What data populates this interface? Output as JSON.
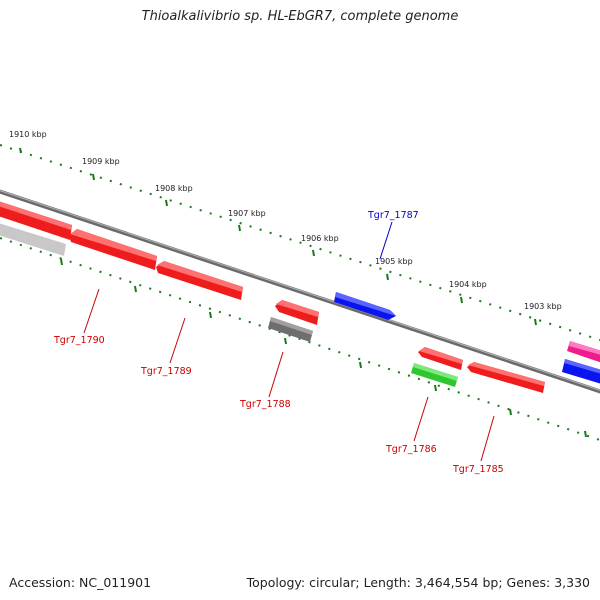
{
  "title": "Thioalkalivibrio sp. HL-EbGR7, complete genome",
  "footer": {
    "accession": "Accession: NC_011901",
    "summary": "Topology: circular; Length: 3,464,554 bp; Genes: 3,330"
  },
  "colors": {
    "backbone": "#808080",
    "tick_dots": "#1a7a1a",
    "red_gene": "#ee1c1c",
    "gray_gene": "#6e6e6e",
    "light_gray_gene": "#c8c8c8",
    "blue_gene": "#0a14ee",
    "green_gene": "#2fc72f",
    "magenta_gene": "#ee1c8c",
    "label_red": "#cc0000",
    "label_blue": "#0000cc"
  },
  "scale_labels": [
    "1910 kbp",
    "1909 kbp",
    "1908 kbp",
    "1907 kbp",
    "1906 kbp",
    "1905 kbp",
    "1904 kbp",
    "1903 kbp"
  ],
  "gene_labels": [
    {
      "id": "g1790",
      "text": "Tgr7_1790",
      "color": "red"
    },
    {
      "id": "g1789",
      "text": "Tgr7_1789",
      "color": "red"
    },
    {
      "id": "g1788",
      "text": "Tgr7_1788",
      "color": "red"
    },
    {
      "id": "g1787",
      "text": "Tgr7_1787",
      "color": "blue"
    },
    {
      "id": "g1786",
      "text": "Tgr7_1786",
      "color": "red"
    },
    {
      "id": "g1785",
      "text": "Tgr7_1785",
      "color": "red"
    }
  ]
}
